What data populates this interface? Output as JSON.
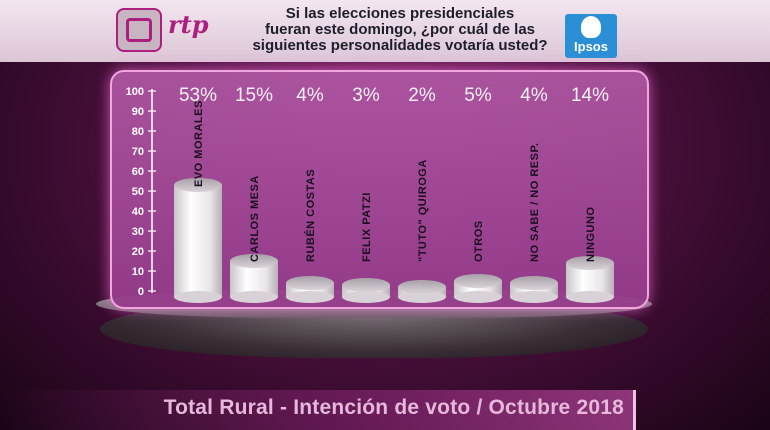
{
  "header": {
    "logo_text": "rtp",
    "question_line1": "Si las elecciones presidenciales",
    "question_line2": "fueran este domingo, ¿por cuál de las",
    "question_line3": "siguientes personalidades votaría usted?",
    "brand_logo": "Ipsos"
  },
  "footer": {
    "title": "Total Rural - Intención de voto / Octubre 2018"
  },
  "colors": {
    "accent": "#ad1f7f",
    "panel": "#b058a4",
    "bar": "#f2f0f2"
  },
  "chart_data": {
    "type": "bar",
    "categories": [
      "EVO MORALES",
      "CARLOS MESA",
      "RUBÉN COSTAS",
      "FELIX PATZI",
      "\"TUTO\" QUIROGA",
      "OTROS",
      "NO SABE / NO RESP.",
      "NINGUNO"
    ],
    "values": [
      53,
      15,
      4,
      3,
      2,
      5,
      4,
      14
    ],
    "value_labels": [
      "53%",
      "15%",
      "4%",
      "3%",
      "2%",
      "5%",
      "4%",
      "14%"
    ],
    "ylim": [
      0,
      100
    ],
    "yticks": [
      "0",
      "10",
      "20",
      "30",
      "40",
      "50",
      "60",
      "70",
      "80",
      "90",
      "100"
    ],
    "grid": false,
    "legend": "none"
  }
}
